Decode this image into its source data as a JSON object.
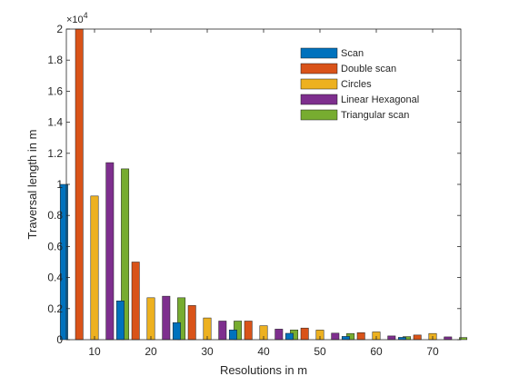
{
  "chart_data": {
    "type": "bar",
    "xlabel": "Resolutions in m",
    "ylabel": "Traversal length in m",
    "y_exponent_label": {
      "base": "×10",
      "exponent": "4"
    },
    "ylim": [
      0,
      2
    ],
    "yticks": [
      0,
      0.2,
      0.4,
      0.6,
      0.8,
      1,
      1.2,
      1.4,
      1.6,
      1.8,
      2
    ],
    "ytick_labels": [
      "0",
      "0.2",
      "0.4",
      "0.6",
      "0.8",
      "1",
      "1.2",
      "1.4",
      "1.6",
      "1.8",
      "2"
    ],
    "categories": [
      "10",
      "20",
      "30",
      "40",
      "50",
      "60",
      "70"
    ],
    "grid": false,
    "legend_position": "top-right",
    "series": [
      {
        "name": "Scan",
        "color": "#0072BD",
        "values": [
          1.0,
          0.25,
          0.11,
          0.063,
          0.041,
          0.021,
          0.015
        ]
      },
      {
        "name": "Double scan",
        "color": "#D95319",
        "values": [
          2.0,
          0.5,
          0.22,
          0.12,
          0.075,
          0.045,
          0.03
        ]
      },
      {
        "name": "Circles",
        "color": "#EDB120",
        "values": [
          0.925,
          0.27,
          0.14,
          0.09,
          0.062,
          0.05,
          0.04
        ]
      },
      {
        "name": "Linear Hexagonal",
        "color": "#7E2F8E",
        "values": [
          1.14,
          0.28,
          0.12,
          0.068,
          0.042,
          0.024,
          0.018
        ]
      },
      {
        "name": "Triangular scan",
        "color": "#77AC30",
        "values": [
          1.1,
          0.27,
          0.12,
          0.063,
          0.04,
          0.02,
          0.014
        ]
      }
    ]
  }
}
